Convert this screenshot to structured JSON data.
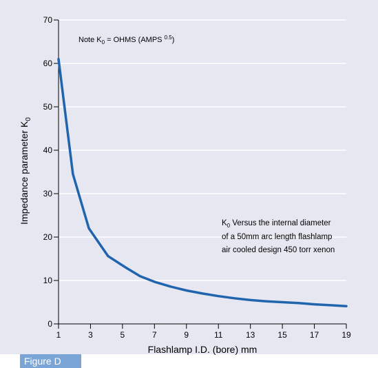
{
  "figure_label": "Figure D",
  "colors": {
    "panel_bg": "#e6e7f1",
    "line": "#1f64ad",
    "grid": "#ffffff",
    "axis": "#000000",
    "tab_bg": "#7aa5d6"
  },
  "note": {
    "prefix": "Note K",
    "sub": "0",
    "mid": " = OHMS (AMPS ",
    "sup": "0.5",
    "suffix": ")"
  },
  "annotation": {
    "line1_k": "K",
    "line1_sub": "0",
    "line1_rest": " Versus the internal diameter",
    "line2": "of a 50mm arc length flashlamp",
    "line3": "air cooled design 450 torr xenon"
  },
  "chart_data": {
    "type": "line",
    "xlabel": "Flashlamp I.D. (bore) mm",
    "ylabel_main": "Impedance parameter K",
    "ylabel_sub": "0",
    "xlim": [
      1,
      19
    ],
    "ylim": [
      0,
      70
    ],
    "xticks": [
      1,
      3,
      5,
      7,
      9,
      11,
      13,
      15,
      17,
      19
    ],
    "yticks": [
      0,
      10,
      20,
      30,
      40,
      50,
      60,
      70
    ],
    "grid": "horizontal",
    "series": [
      {
        "x": [
          1,
          1.9,
          2.9,
          4.1,
          5.2,
          6.1,
          7,
          8,
          9,
          10,
          11,
          12,
          13,
          14,
          15,
          16,
          17,
          18,
          19
        ],
        "y": [
          61,
          34.5,
          22,
          15.6,
          13,
          11,
          9.7,
          8.6,
          7.7,
          7,
          6.4,
          5.9,
          5.5,
          5.2,
          5,
          4.8,
          4.5,
          4.3,
          4.1
        ]
      }
    ]
  }
}
